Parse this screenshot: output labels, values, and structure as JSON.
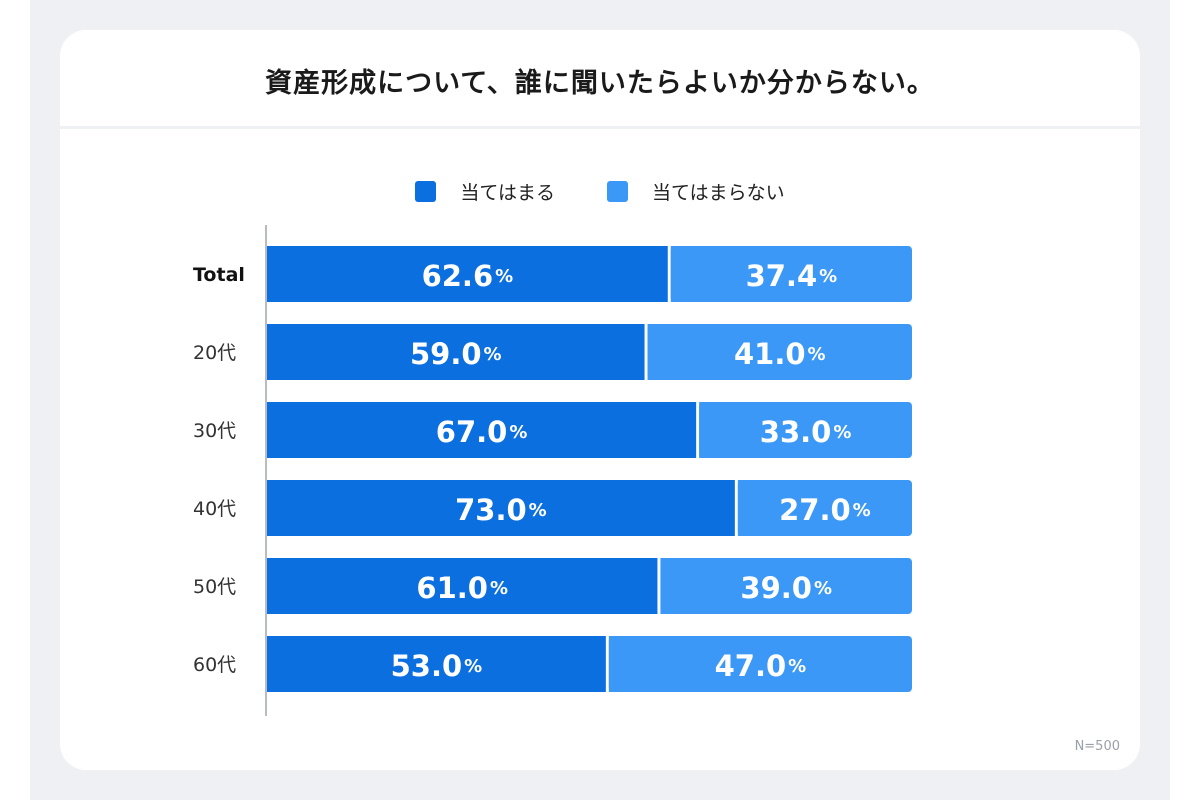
{
  "chart_data": {
    "type": "bar",
    "orientation": "horizontal",
    "stacked": true,
    "title": "資産形成について、誰に聞いたらよいか分からない。",
    "categories": [
      "Total",
      "20代",
      "30代",
      "40代",
      "50代",
      "60代"
    ],
    "series": [
      {
        "name": "当てはまる",
        "values": [
          62.6,
          59.0,
          67.0,
          73.0,
          61.0,
          53.0
        ],
        "color": "#0b6fe0"
      },
      {
        "name": "当てはまらない",
        "values": [
          37.4,
          41.0,
          33.0,
          27.0,
          39.0,
          47.0
        ],
        "color": "#3b98f7"
      }
    ],
    "value_suffix": "%",
    "xlim": [
      0,
      100
    ],
    "grid": false,
    "legend_position": "top-center",
    "note": "N=500"
  }
}
